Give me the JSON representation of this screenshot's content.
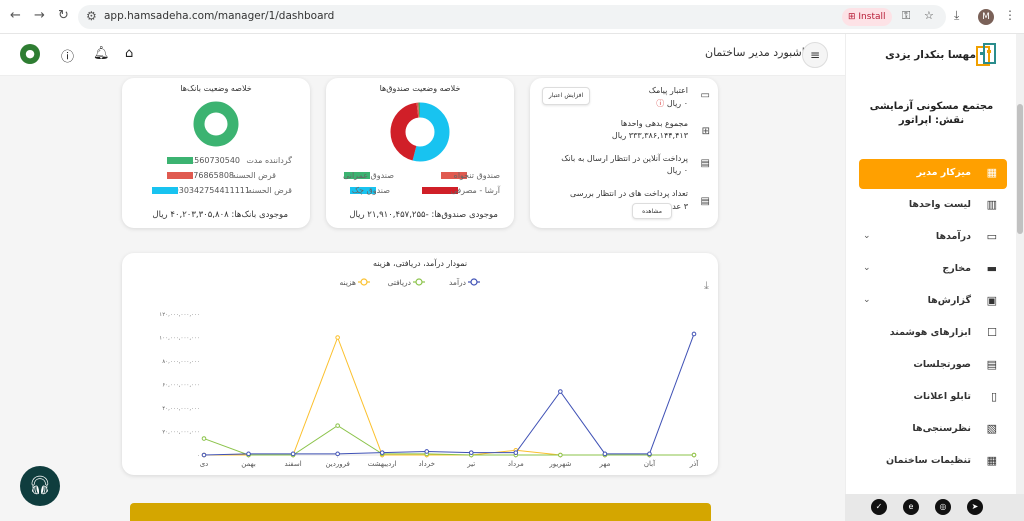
{
  "browser": {
    "url": "app.hamsadeha.com/manager/1/dashboard",
    "install_label": "Install",
    "profile_initial": "M"
  },
  "topbar": {
    "title": "داشبورد مدیر ساختمان"
  },
  "sidebar": {
    "user_name": "مهسا بنکدار یزدی",
    "complex_name": "مجتمع مسکونی آزمایشی",
    "role": "نقش: اپراتور",
    "items": [
      {
        "label": "میزکار مدیر",
        "icon": "dashboard-icon",
        "active": true,
        "expandable": false
      },
      {
        "label": "لیست واحدها",
        "icon": "building-icon",
        "active": false,
        "expandable": false
      },
      {
        "label": "درآمدها",
        "icon": "income-icon",
        "active": false,
        "expandable": true
      },
      {
        "label": "مخارج",
        "icon": "card-icon",
        "active": false,
        "expandable": true
      },
      {
        "label": "گزارش‌ها",
        "icon": "report-icon",
        "active": false,
        "expandable": true
      },
      {
        "label": "ابزارهای هوشمند",
        "icon": "robot-icon",
        "active": false,
        "expandable": false
      },
      {
        "label": "صورتجلسات",
        "icon": "minutes-icon",
        "active": false,
        "expandable": false
      },
      {
        "label": "تابلو اعلانات",
        "icon": "board-icon",
        "active": false,
        "expandable": false
      },
      {
        "label": "نظرسنجی‌ها",
        "icon": "poll-icon",
        "active": false,
        "expandable": false
      },
      {
        "label": "تنظیمات ساختمان",
        "icon": "settings-icon",
        "active": false,
        "expandable": false
      }
    ]
  },
  "bank_card": {
    "title": "خلاصه وضعیت بانک‌ها",
    "legend": [
      {
        "label": "گرداننده مدت",
        "value": "1560730540",
        "color": "#3cb371"
      },
      {
        "label": "قرض الحسنه",
        "value": "976865808",
        "color": "#e05a50"
      },
      {
        "label": "قرض الحسنه",
        "value": "030342754411111",
        "color": "#18c3f0"
      }
    ],
    "balance": "موجودی بانک‌ها: ۴۰,۲۰۳,۳۰۵,۸۰۸ ریال",
    "donut_color": "#3cb371"
  },
  "fund_card": {
    "title": "خلاصه وضعیت صندوق‌ها",
    "legend": [
      {
        "label": "صندوق عمرانی",
        "color": "#3cb371"
      },
      {
        "label": "صندوق تنخواه",
        "color": "#e05a50"
      },
      {
        "label": "صندوق چک",
        "color": "#18c3f0"
      },
      {
        "label": "آرشا - مصرفی",
        "color": "#d01f28"
      }
    ],
    "balance": "موجودی صندوق‌ها: -۲۱,۹۱۰,۴۵۷,۲۵۵ ریال",
    "donut": [
      {
        "color": "#18c3f0",
        "fraction": 0.54
      },
      {
        "color": "#d01f28",
        "fraction": 0.44
      },
      {
        "color": "#e05a50",
        "fraction": 0.01
      },
      {
        "color": "#3cb371",
        "fraction": 0.01
      }
    ]
  },
  "info_card": {
    "sms_credit_label": "اعتبار پیامک",
    "sms_credit_value": "۰ ریال",
    "increase_btn": "افزایش اعتبار",
    "debt_label": "مجموع بدهی واحدها",
    "debt_value": "۳۳۳,۳۸۶,۱۴۴,۴۱۳ ریال",
    "online_label": "پرداخت آنلاین در انتظار ارسال به بانک",
    "online_value": "۰ ریال",
    "pending_label": "تعداد پرداخت های در انتظار بررسی",
    "pending_value": "۳ عدد",
    "view_btn": "مشاهده"
  },
  "chart_data": {
    "type": "line",
    "title": "نمودار درآمد، دریافتی، هزینه",
    "categories": [
      "آذر",
      "آبان",
      "مهر",
      "شهریور",
      "مرداد",
      "تیر",
      "خرداد",
      "اردیبهشت",
      "فروردین",
      "اسفند",
      "بهمن",
      "دی"
    ],
    "ytick_labels": [
      "۰",
      "۲۰,۰۰۰,۰۰۰,۰۰۰",
      "۴۰,۰۰۰,۰۰۰,۰۰۰",
      "۶۰,۰۰۰,۰۰۰,۰۰۰",
      "۸۰,۰۰۰,۰۰۰,۰۰۰",
      "۱۰۰,۰۰۰,۰۰۰,۰۰۰",
      "۱۲۰,۰۰۰,۰۰۰,۰۰۰"
    ],
    "ylim": [
      0,
      120000000000
    ],
    "series": [
      {
        "name": "درآمد",
        "color": "#3f51b5",
        "values": [
          103000000000,
          1000000000,
          1000000000,
          54000000000,
          2000000000,
          2000000000,
          3000000000,
          2000000000,
          1000000000,
          1000000000,
          1000000000,
          0
        ]
      },
      {
        "name": "دریافتی",
        "color": "#8bc34a",
        "values": [
          0,
          0,
          0,
          0,
          0,
          0,
          1000000000,
          1000000000,
          25000000000,
          0,
          0,
          14000000000
        ]
      },
      {
        "name": "هزینه",
        "color": "#fbc02d",
        "values": [
          0,
          0,
          0,
          0,
          4000000000,
          0,
          0,
          0,
          100000000000,
          0,
          0,
          0
        ]
      }
    ],
    "legend_position": "top-center",
    "grid": false
  }
}
